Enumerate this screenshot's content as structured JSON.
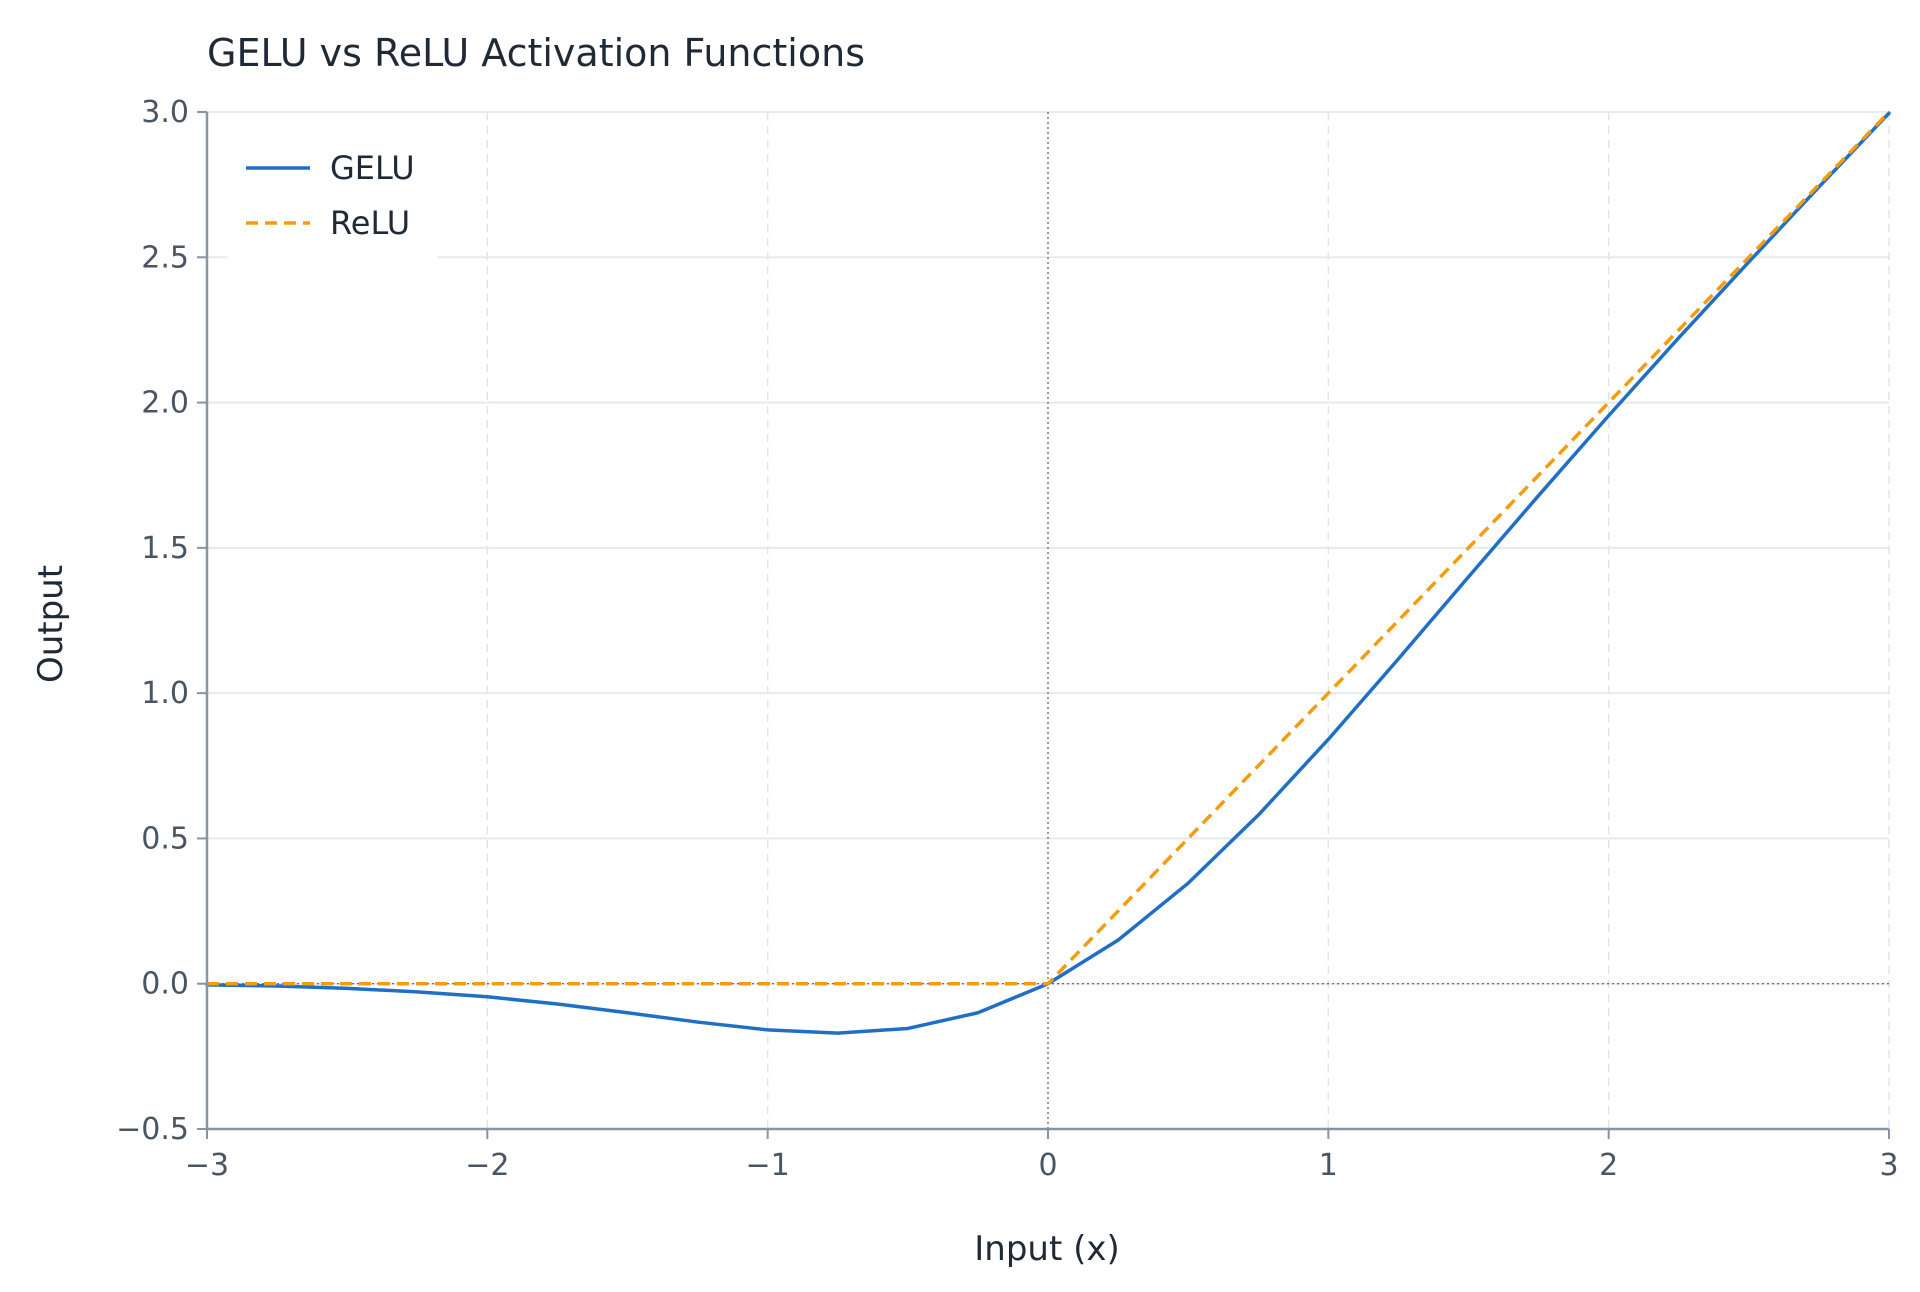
{
  "chart_data": {
    "type": "line",
    "title": "GELU vs ReLU Activation Functions",
    "xlabel": "Input (x)",
    "ylabel": "Output",
    "xlim": [
      -3,
      3
    ],
    "ylim": [
      -0.5,
      3.0
    ],
    "xticks": [
      -3,
      -2,
      -1,
      0,
      1,
      2,
      3
    ],
    "xtick_labels": [
      "−3",
      "−2",
      "−1",
      "0",
      "1",
      "2",
      "3"
    ],
    "yticks": [
      -0.5,
      0.0,
      0.5,
      1.0,
      1.5,
      2.0,
      2.5,
      3.0
    ],
    "ytick_labels": [
      "−0.5",
      "0.0",
      "0.5",
      "1.0",
      "1.5",
      "2.0",
      "2.5",
      "3.0"
    ],
    "grid": true,
    "legend_position": "top-left",
    "series": [
      {
        "name": "GELU",
        "color": "#1f6fc5",
        "style": "solid",
        "x": [
          -3.0,
          -2.75,
          -2.5,
          -2.25,
          -2.0,
          -1.75,
          -1.5,
          -1.25,
          -1.0,
          -0.75,
          -0.5,
          -0.25,
          0.0,
          0.25,
          0.5,
          0.75,
          1.0,
          1.25,
          1.5,
          1.75,
          2.0,
          2.25,
          2.5,
          2.75,
          3.0
        ],
        "y": [
          -0.004,
          -0.008,
          -0.016,
          -0.028,
          -0.045,
          -0.07,
          -0.1,
          -0.132,
          -0.159,
          -0.17,
          -0.154,
          -0.1,
          0.0,
          0.15,
          0.346,
          0.58,
          0.841,
          1.118,
          1.4,
          1.68,
          1.955,
          2.223,
          2.484,
          2.742,
          2.996
        ]
      },
      {
        "name": "ReLU",
        "color": "#f39c12",
        "style": "dashed",
        "x": [
          -3.0,
          0.0,
          3.0
        ],
        "y": [
          0.0,
          0.0,
          3.0
        ]
      }
    ]
  }
}
